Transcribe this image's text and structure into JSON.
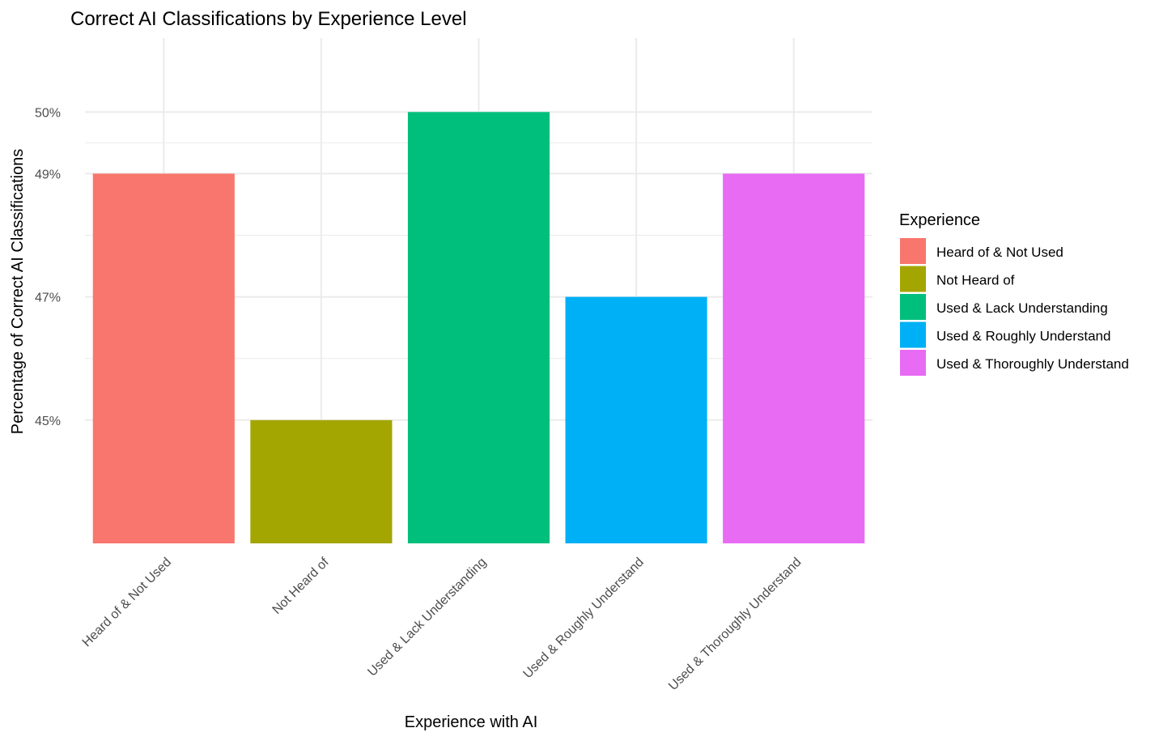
{
  "chart_data": {
    "type": "bar",
    "title": "Correct AI Classifications by Experience Level",
    "xlabel": "Experience with AI",
    "ylabel": "Percentage of Correct AI Classifications",
    "categories": [
      "Heard of & Not Used",
      "Not Heard of",
      "Used & Lack Understanding",
      "Used & Roughly Understand",
      "Used & Thoroughly Understand"
    ],
    "values": [
      49,
      45,
      50,
      47,
      49
    ],
    "colors": [
      "#F8766D",
      "#A3A500",
      "#00BF7D",
      "#00B0F6",
      "#E76BF3"
    ],
    "ylim": [
      43,
      51.2
    ],
    "yticks": [
      45,
      47,
      49,
      50
    ],
    "ytick_labels": [
      "45%",
      "47%",
      "49%",
      "50%"
    ],
    "grid": true,
    "legend": {
      "title": "Experience",
      "placement": "right",
      "entries": [
        "Heard of & Not Used",
        "Not Heard of",
        "Used & Lack Understanding",
        "Used & Roughly Understand",
        "Used & Thoroughly Understand"
      ]
    }
  }
}
